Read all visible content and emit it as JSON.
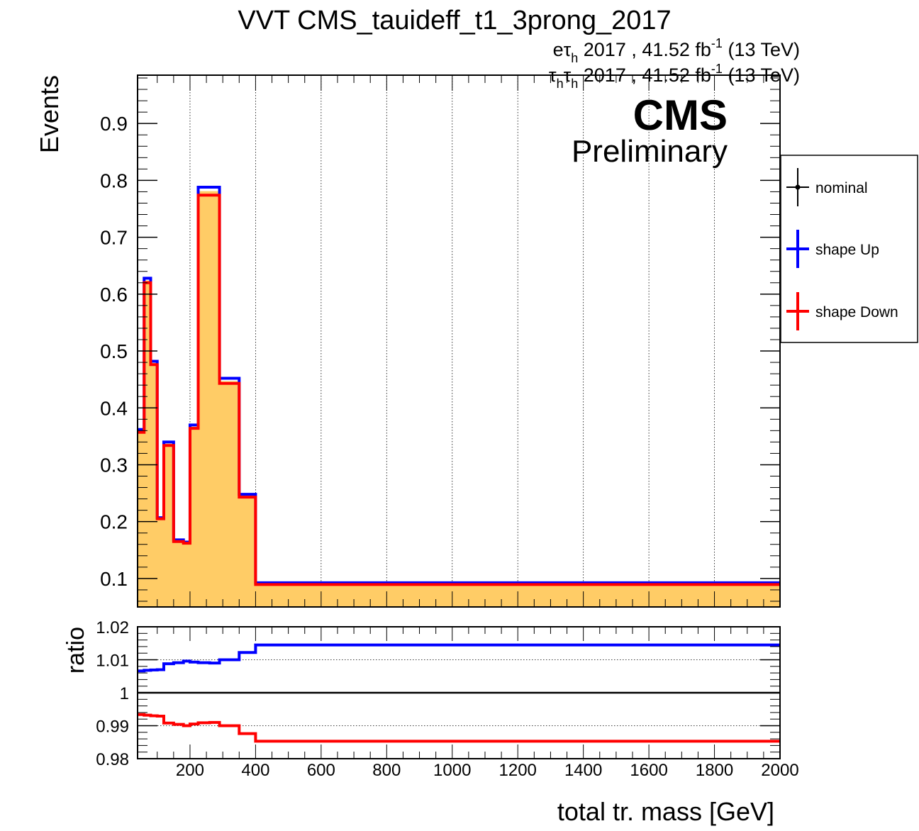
{
  "title": "VVT CMS_tauideff_t1_3prong_2017",
  "channel_labels": [
    {
      "prefix": "eτ",
      "sub": "h",
      "mid": " 2017 , 41.52 fb",
      "sup": "-1",
      "suffix": " (13 TeV)"
    },
    {
      "prefix": "τ",
      "sub": "h",
      "prefix2": "τ",
      "sub2": "h",
      "mid": " 2017 , 41.52 fb",
      "sup": "-1",
      "suffix": " (13 TeV)"
    }
  ],
  "cms_label": "CMS",
  "preliminary_label": "Preliminary",
  "colors": {
    "fill": "#ffcc66",
    "nominal": "#000000",
    "up": "#0000ff",
    "down": "#ff0000"
  },
  "chart_data": [
    {
      "type": "area",
      "ylabel": "Events",
      "xlim": [
        40,
        2000
      ],
      "ylim": [
        0.05,
        0.985
      ],
      "yticks": [
        0.1,
        0.2,
        0.3,
        0.4,
        0.5,
        0.6,
        0.7,
        0.8,
        0.9
      ],
      "ytick_labels": [
        "0.1",
        "0.2",
        "0.3",
        "0.4",
        "0.5",
        "0.6",
        "0.7",
        "0.8",
        "0.9"
      ],
      "xgrid": true,
      "legend_position": "right",
      "bin_edges": [
        40,
        60,
        80,
        100,
        120,
        150,
        180,
        200,
        225,
        260,
        290,
        320,
        350,
        400,
        500,
        2000
      ],
      "series": [
        {
          "name": "nominal",
          "values": [
            0.36,
            0.624,
            0.479,
            0.206,
            0.337,
            0.166,
            0.163,
            0.367,
            0.781,
            0.781,
            0.447,
            0.447,
            0.247,
            0.091,
            0.091
          ]
        },
        {
          "name": "shape Up",
          "values": [
            0.362,
            0.628,
            0.482,
            0.207,
            0.34,
            0.168,
            0.164,
            0.37,
            0.788,
            0.788,
            0.452,
            0.452,
            0.248,
            0.0925,
            0.0925
          ]
        },
        {
          "name": "shape Down",
          "values": [
            0.357,
            0.62,
            0.476,
            0.205,
            0.334,
            0.165,
            0.162,
            0.364,
            0.774,
            0.774,
            0.443,
            0.443,
            0.243,
            0.0895,
            0.0895
          ]
        }
      ]
    },
    {
      "type": "line",
      "ylabel": "ratio",
      "xlabel": "total tr. mass [GeV]",
      "xlim": [
        40,
        2000
      ],
      "ylim": [
        0.98,
        1.02
      ],
      "yticks": [
        0.98,
        0.99,
        1,
        1.01,
        1.02
      ],
      "ytick_labels": [
        "0.98",
        "0.99",
        "1",
        "1.01",
        "1.02"
      ],
      "xticks": [
        200,
        400,
        600,
        800,
        1000,
        1200,
        1400,
        1600,
        1800,
        2000
      ],
      "xtick_labels": [
        "200",
        "400",
        "600",
        "800",
        "1000",
        "1200",
        "1400",
        "1600",
        "1800",
        "2000"
      ],
      "ygrid": true,
      "reference": 1,
      "bin_edges": [
        40,
        60,
        80,
        100,
        120,
        150,
        180,
        200,
        225,
        260,
        290,
        320,
        350,
        400,
        500,
        2000
      ],
      "series": [
        {
          "name": "shape Up",
          "values": [
            1.0066,
            1.0068,
            1.0069,
            1.007,
            1.0088,
            1.0091,
            1.0096,
            1.0093,
            1.0091,
            1.009,
            1.01,
            1.01,
            1.0122,
            1.0145,
            1.0145
          ]
        },
        {
          "name": "shape Down",
          "values": [
            0.9934,
            0.9932,
            0.993,
            0.9929,
            0.9908,
            0.9904,
            0.99,
            0.9905,
            0.9909,
            0.991,
            0.99,
            0.99,
            0.9876,
            0.9853,
            0.9853
          ]
        }
      ]
    }
  ]
}
